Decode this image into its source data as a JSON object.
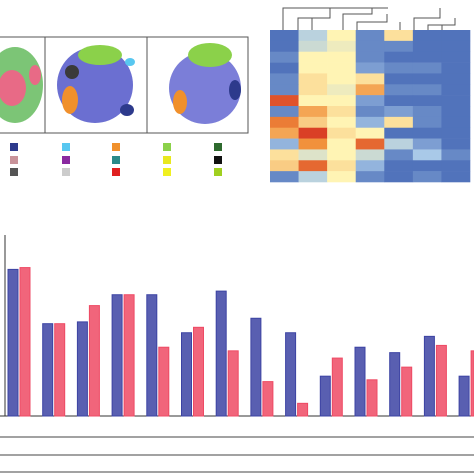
{
  "chart_data": [
    {
      "type": "heatmap",
      "colors": [
        "#3b5eb0",
        "#a9c9e8",
        "#fff4b4",
        "#f1913c",
        "#d42a20"
      ],
      "values": [
        [
          0.05,
          0.3,
          0.5,
          0.1,
          0.55,
          0.05,
          0.05
        ],
        [
          0.05,
          0.35,
          0.45,
          0.1,
          0.1,
          0.05,
          0.05
        ],
        [
          0.1,
          0.5,
          0.5,
          0.1,
          0.05,
          0.05,
          0.05
        ],
        [
          0.05,
          0.5,
          0.5,
          0.15,
          0.1,
          0.1,
          0.05
        ],
        [
          0.1,
          0.55,
          0.5,
          0.55,
          0.05,
          0.05,
          0.05
        ],
        [
          0.1,
          0.55,
          0.45,
          0.7,
          0.1,
          0.1,
          0.05
        ],
        [
          0.9,
          0.5,
          0.5,
          0.15,
          0.05,
          0.05,
          0.05
        ],
        [
          0.1,
          0.7,
          0.55,
          0.1,
          0.15,
          0.1,
          0.05
        ],
        [
          0.8,
          0.6,
          0.5,
          0.2,
          0.55,
          0.1,
          0.05
        ],
        [
          0.7,
          0.95,
          0.55,
          0.5,
          0.05,
          0.05,
          0.05
        ],
        [
          0.2,
          0.75,
          0.5,
          0.85,
          0.3,
          0.15,
          0.05
        ],
        [
          0.55,
          0.4,
          0.5,
          0.35,
          0.1,
          0.25,
          0.1
        ],
        [
          0.6,
          0.85,
          0.55,
          0.2,
          0.05,
          0.05,
          0.05
        ],
        [
          0.1,
          0.3,
          0.5,
          0.1,
          0.05,
          0.1,
          0.05
        ]
      ]
    },
    {
      "type": "bar",
      "ylim": [
        0,
        1
      ],
      "series": [
        {
          "color": "#3c43a3",
          "values": [
            0.81,
            0.51,
            0.52,
            0.67,
            0.67,
            0.46,
            0.69,
            0.54,
            0.46,
            0.22,
            0.38,
            0.35,
            0.44,
            0.22
          ]
        },
        {
          "color": "#ee4a64",
          "values": [
            0.82,
            0.51,
            0.61,
            0.67,
            0.38,
            0.49,
            0.36,
            0.19,
            0.07,
            0.32,
            0.2,
            0.27,
            0.39,
            0.36
          ]
        }
      ]
    }
  ]
}
